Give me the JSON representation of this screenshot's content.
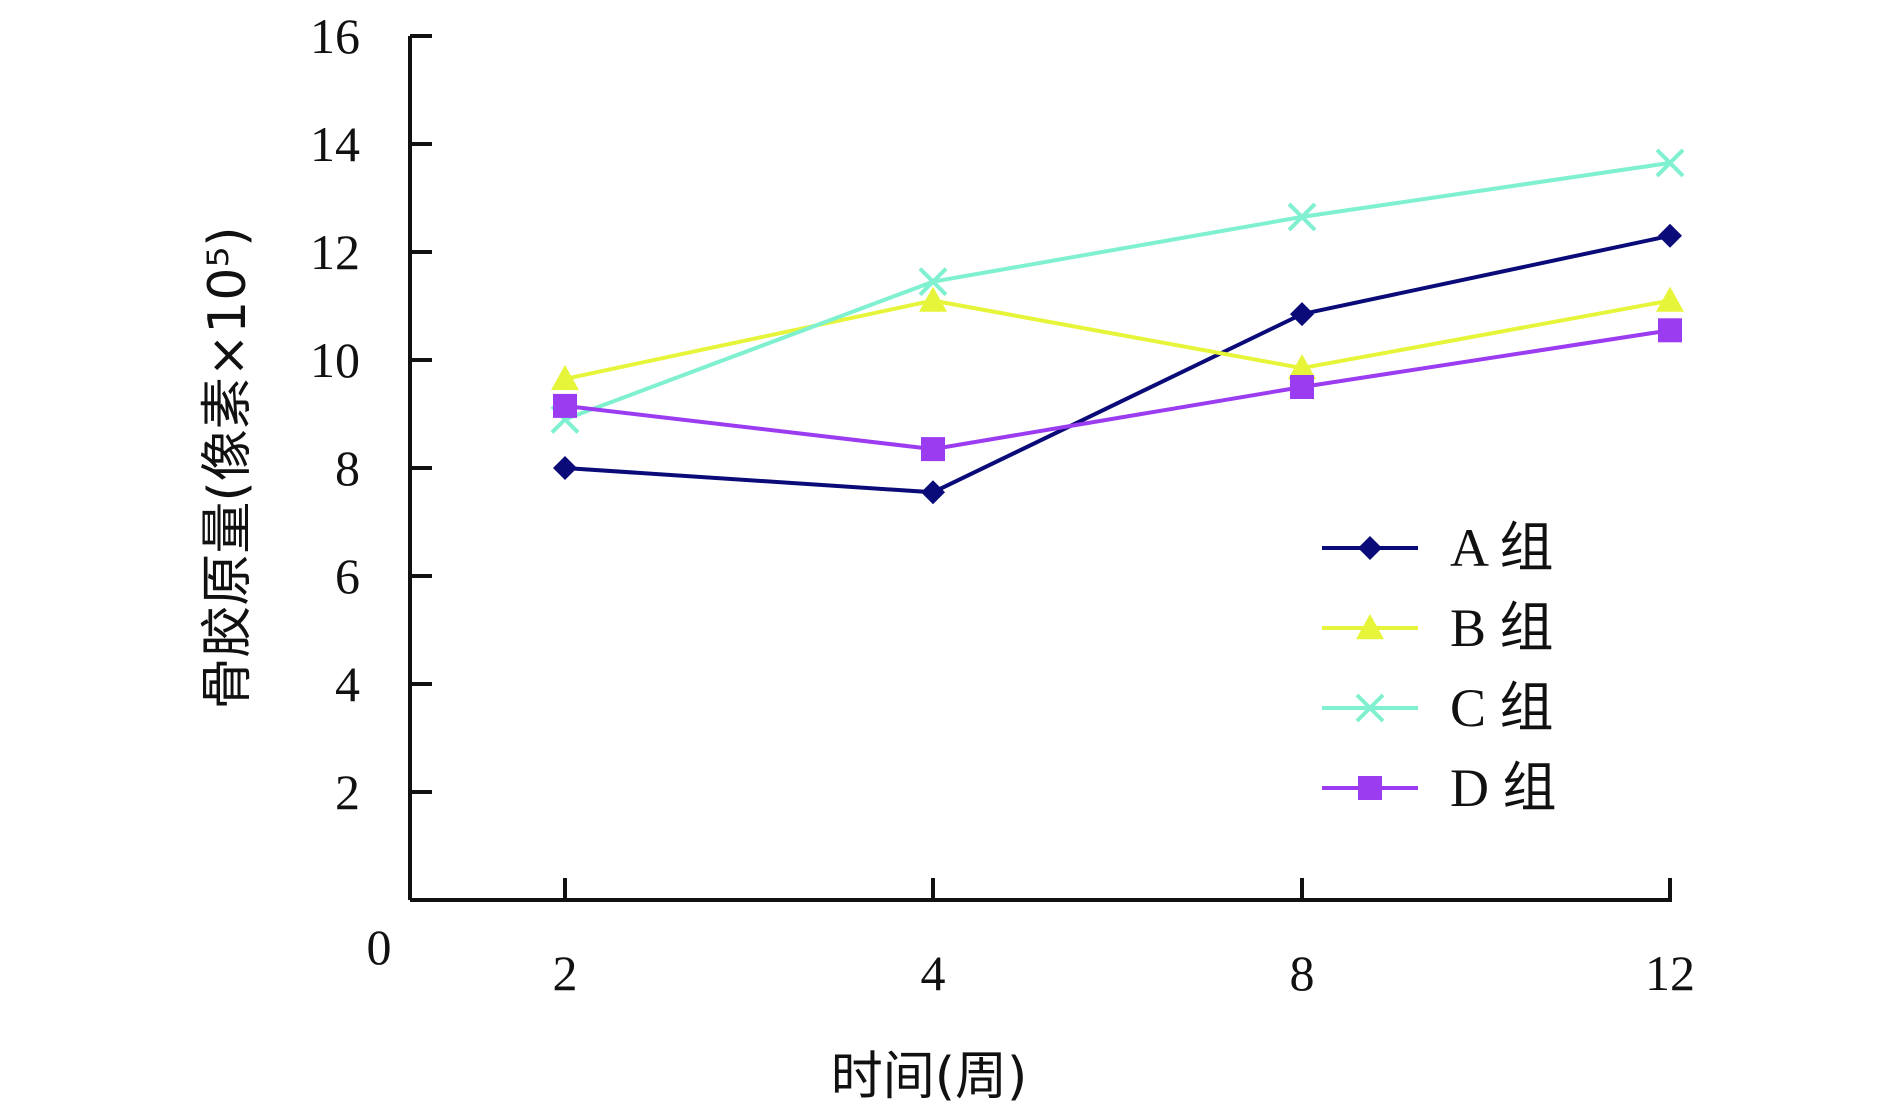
{
  "chart_data": {
    "type": "line",
    "categories": [
      "2",
      "4",
      "8",
      "12"
    ],
    "xlabel": "时间(周)",
    "ylabel": "骨胶原量(像素×10⁵)",
    "ylim": [
      0,
      16
    ],
    "yticks": [
      2,
      4,
      6,
      8,
      10,
      12,
      14,
      16
    ],
    "origin_label": "0",
    "grid": false,
    "legend_position": "bottom-right",
    "series": [
      {
        "name": "A 组",
        "values": [
          8.0,
          7.55,
          10.85,
          12.3
        ],
        "color": "#0a0a78",
        "marker": "diamond"
      },
      {
        "name": "B 组",
        "values": [
          9.65,
          11.1,
          9.85,
          11.1
        ],
        "color": "#e6f53a",
        "marker": "triangle"
      },
      {
        "name": "C 组",
        "values": [
          8.9,
          11.45,
          12.65,
          13.65
        ],
        "color": "#7ff0d0",
        "marker": "x"
      },
      {
        "name": "D 组",
        "values": [
          9.15,
          8.35,
          9.5,
          10.55
        ],
        "color": "#9b3cf0",
        "marker": "square"
      }
    ]
  }
}
